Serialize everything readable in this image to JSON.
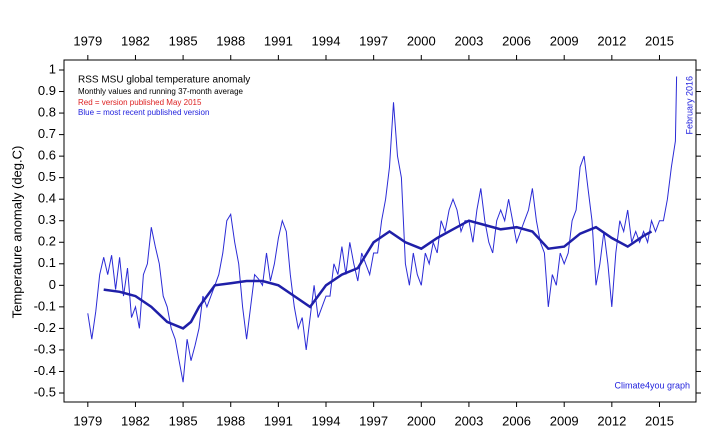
{
  "chart_data": {
    "type": "line",
    "title": "RSS MSU global temperature anomaly",
    "subtitle": "Monthly values and running 37-month average",
    "annotations": [
      "Red = version published May 2015",
      "Blue = most recent published version",
      "February 2016",
      "Climate4you graph"
    ],
    "ylabel": "Temperature anomaly (deg.C)",
    "xlim": [
      1977.5,
      2017.3
    ],
    "xticks": [
      1979,
      1982,
      1985,
      1988,
      1991,
      1994,
      1997,
      2000,
      2003,
      2006,
      2009,
      2012,
      2015
    ],
    "ylim": [
      -0.5,
      1
    ],
    "yticks": [
      -0.5,
      -0.4,
      -0.3,
      -0.2,
      -0.1,
      0,
      0.1,
      0.2,
      0.3,
      0.4,
      0.5,
      0.6,
      0.7,
      0.8,
      0.9,
      1
    ],
    "series": [
      {
        "name": "Monthly values",
        "color": "#2b2bd6",
        "x": [
          1979.0,
          1979.25,
          1979.5,
          1979.75,
          1980.0,
          1980.25,
          1980.5,
          1980.75,
          1981.0,
          1981.25,
          1981.5,
          1981.75,
          1982.0,
          1982.25,
          1982.5,
          1982.75,
          1983.0,
          1983.25,
          1983.5,
          1983.75,
          1984.0,
          1984.25,
          1984.5,
          1984.75,
          1985.0,
          1985.25,
          1985.5,
          1985.75,
          1986.0,
          1986.25,
          1986.5,
          1986.75,
          1987.0,
          1987.25,
          1987.5,
          1987.75,
          1988.0,
          1988.25,
          1988.5,
          1988.75,
          1989.0,
          1989.25,
          1989.5,
          1989.75,
          1990.0,
          1990.25,
          1990.5,
          1990.75,
          1991.0,
          1991.25,
          1991.5,
          1991.75,
          1992.0,
          1992.25,
          1992.5,
          1992.75,
          1993.0,
          1993.25,
          1993.5,
          1993.75,
          1994.0,
          1994.25,
          1994.5,
          1994.75,
          1995.0,
          1995.25,
          1995.5,
          1995.75,
          1996.0,
          1996.25,
          1996.5,
          1996.75,
          1997.0,
          1997.25,
          1997.5,
          1997.75,
          1998.0,
          1998.25,
          1998.5,
          1998.75,
          1999.0,
          1999.25,
          1999.5,
          1999.75,
          2000.0,
          2000.25,
          2000.5,
          2000.75,
          2001.0,
          2001.25,
          2001.5,
          2001.75,
          2002.0,
          2002.25,
          2002.5,
          2002.75,
          2003.0,
          2003.25,
          2003.5,
          2003.75,
          2004.0,
          2004.25,
          2004.5,
          2004.75,
          2005.0,
          2005.25,
          2005.5,
          2005.75,
          2006.0,
          2006.25,
          2006.5,
          2006.75,
          2007.0,
          2007.25,
          2007.5,
          2007.75,
          2008.0,
          2008.25,
          2008.5,
          2008.75,
          2009.0,
          2009.25,
          2009.5,
          2009.75,
          2010.0,
          2010.25,
          2010.5,
          2010.75,
          2011.0,
          2011.25,
          2011.5,
          2011.75,
          2012.0,
          2012.25,
          2012.5,
          2012.75,
          2013.0,
          2013.25,
          2013.5,
          2013.75,
          2014.0,
          2014.25,
          2014.5,
          2014.75,
          2015.0,
          2015.25,
          2015.5,
          2015.75,
          2016.0,
          2016.08
        ],
        "values": [
          -0.13,
          -0.25,
          -0.12,
          0.05,
          0.13,
          0.05,
          0.14,
          -0.02,
          0.13,
          -0.05,
          0.08,
          -0.15,
          -0.1,
          -0.2,
          0.05,
          0.1,
          0.27,
          0.18,
          0.1,
          -0.05,
          -0.1,
          -0.2,
          -0.25,
          -0.35,
          -0.45,
          -0.25,
          -0.35,
          -0.28,
          -0.2,
          -0.05,
          -0.1,
          -0.05,
          0.0,
          0.05,
          0.15,
          0.3,
          0.33,
          0.2,
          0.1,
          -0.1,
          -0.25,
          -0.1,
          0.05,
          0.03,
          0.0,
          0.15,
          0.02,
          0.1,
          0.22,
          0.3,
          0.25,
          0.05,
          -0.1,
          -0.2,
          -0.15,
          -0.3,
          -0.15,
          0.0,
          -0.15,
          -0.1,
          -0.05,
          -0.05,
          0.1,
          0.05,
          0.18,
          0.05,
          0.2,
          0.1,
          0.02,
          0.15,
          0.1,
          0.05,
          0.15,
          0.15,
          0.3,
          0.4,
          0.55,
          0.85,
          0.6,
          0.5,
          0.1,
          0.0,
          0.15,
          0.05,
          0.0,
          0.15,
          0.1,
          0.2,
          0.15,
          0.3,
          0.25,
          0.35,
          0.4,
          0.35,
          0.25,
          0.3,
          0.3,
          0.2,
          0.35,
          0.45,
          0.3,
          0.2,
          0.15,
          0.3,
          0.35,
          0.3,
          0.4,
          0.3,
          0.2,
          0.25,
          0.3,
          0.35,
          0.45,
          0.3,
          0.2,
          0.15,
          -0.1,
          0.05,
          0.0,
          0.15,
          0.1,
          0.15,
          0.3,
          0.35,
          0.55,
          0.6,
          0.45,
          0.3,
          0.0,
          0.1,
          0.25,
          0.1,
          -0.1,
          0.15,
          0.3,
          0.25,
          0.35,
          0.2,
          0.25,
          0.2,
          0.25,
          0.2,
          0.3,
          0.25,
          0.3,
          0.3,
          0.4,
          0.55,
          0.67,
          0.97
        ]
      },
      {
        "name": "Running 37-month average",
        "color": "#1f1fa8",
        "x": [
          1980,
          1981,
          1982,
          1983,
          1984,
          1985,
          1985.5,
          1986,
          1987,
          1988,
          1989,
          1990,
          1991,
          1992,
          1993,
          1994,
          1995,
          1996,
          1997,
          1998,
          1999,
          2000,
          2001,
          2002,
          2003,
          2004,
          2005,
          2006,
          2007,
          2008,
          2009,
          2010,
          2011,
          2012,
          2013,
          2014,
          2014.5
        ],
        "values": [
          -0.02,
          -0.03,
          -0.05,
          -0.1,
          -0.17,
          -0.2,
          -0.17,
          -0.1,
          0.0,
          0.01,
          0.02,
          0.02,
          0.0,
          -0.05,
          -0.1,
          0.0,
          0.05,
          0.08,
          0.2,
          0.25,
          0.2,
          0.17,
          0.22,
          0.26,
          0.3,
          0.28,
          0.26,
          0.27,
          0.25,
          0.17,
          0.18,
          0.24,
          0.27,
          0.22,
          0.18,
          0.23,
          0.25
        ]
      }
    ]
  }
}
